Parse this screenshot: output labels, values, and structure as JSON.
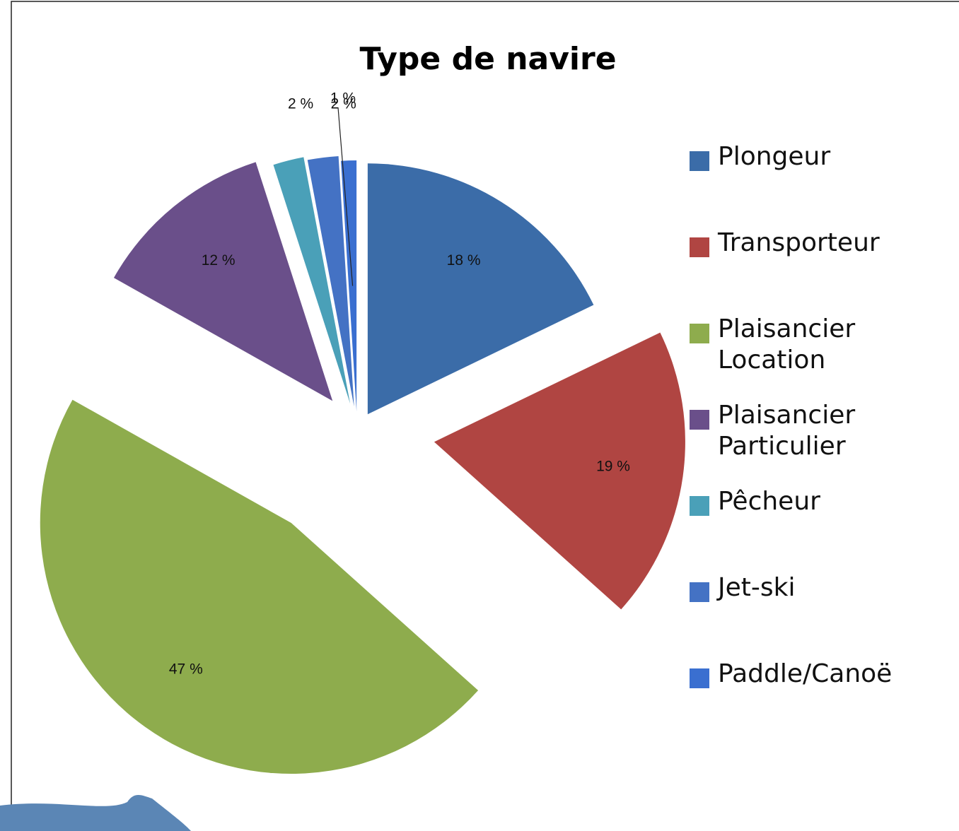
{
  "chart_data": {
    "type": "pie",
    "title": "Type de navire",
    "categories": [
      "Plongeur",
      "Transporteur",
      "Plaisancier Location",
      "Plaisancier Particulier",
      "Pêcheur",
      "Jet-ski",
      "Paddle/Canoë"
    ],
    "values": [
      18,
      19,
      47,
      12,
      2,
      2,
      1
    ],
    "value_labels": [
      "18 %",
      "19 %",
      "47 %",
      "12 %",
      "2 %",
      "2 %",
      "1 %"
    ],
    "colors": [
      "#3b6ca8",
      "#b04542",
      "#8eac4d",
      "#6a4f8a",
      "#4aa0b8",
      "#4472c4",
      "#3a6fd0"
    ],
    "legend": "right"
  }
}
